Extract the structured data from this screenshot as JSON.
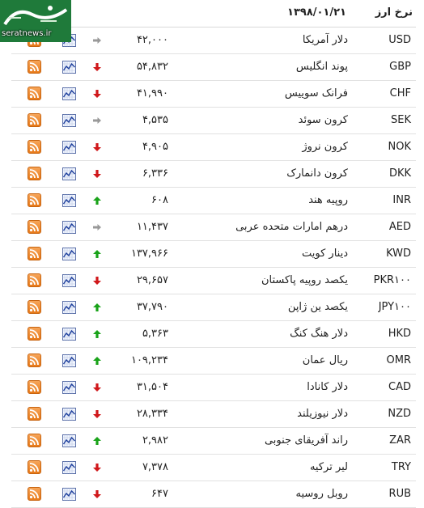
{
  "header": {
    "title": "نرخ ارز",
    "date": "۱۳۹۸/۰۱/۲۱",
    "logo_text": "seratnews.ir"
  },
  "colors": {
    "up": "#1aa31a",
    "down": "#d0181b",
    "flat": "#999999",
    "rss": "#ee8a2a"
  },
  "rows": [
    {
      "code": "USD",
      "name": "دلار آمریکا",
      "price": "۴۲,۰۰۰",
      "trend": "flat"
    },
    {
      "code": "GBP",
      "name": "پوند انگلیس",
      "price": "۵۴,۸۳۲",
      "trend": "down"
    },
    {
      "code": "CHF",
      "name": "فرانک سوییس",
      "price": "۴۱,۹۹۰",
      "trend": "down"
    },
    {
      "code": "SEK",
      "name": "کرون سوئد",
      "price": "۴,۵۳۵",
      "trend": "flat"
    },
    {
      "code": "NOK",
      "name": "کرون نروژ",
      "price": "۴,۹۰۵",
      "trend": "down"
    },
    {
      "code": "DKK",
      "name": "کرون دانمارک",
      "price": "۶,۳۳۶",
      "trend": "down"
    },
    {
      "code": "INR",
      "name": "روپیه هند",
      "price": "۶۰۸",
      "trend": "up"
    },
    {
      "code": "AED",
      "name": "درهم امارات متحده عربی",
      "price": "۱۱,۴۳۷",
      "trend": "flat"
    },
    {
      "code": "KWD",
      "name": "دینار کویت",
      "price": "۱۳۷,۹۶۶",
      "trend": "up"
    },
    {
      "code": "PKR۱۰۰",
      "name": "یکصد روپیه پاکستان",
      "price": "۲۹,۶۵۷",
      "trend": "down"
    },
    {
      "code": "JPY۱۰۰",
      "name": "یکصد ین ژاپن",
      "price": "۳۷,۷۹۰",
      "trend": "up"
    },
    {
      "code": "HKD",
      "name": "دلار هنگ کنگ",
      "price": "۵,۳۶۳",
      "trend": "up"
    },
    {
      "code": "OMR",
      "name": "ریال عمان",
      "price": "۱۰۹,۲۳۴",
      "trend": "up"
    },
    {
      "code": "CAD",
      "name": "دلار کانادا",
      "price": "۳۱,۵۰۴",
      "trend": "down"
    },
    {
      "code": "NZD",
      "name": "دلار نیوزیلند",
      "price": "۲۸,۳۳۴",
      "trend": "down"
    },
    {
      "code": "ZAR",
      "name": "راند آفریقای جنوبی",
      "price": "۲,۹۸۲",
      "trend": "up"
    },
    {
      "code": "TRY",
      "name": "لیر ترکیه",
      "price": "۷,۳۷۸",
      "trend": "down"
    },
    {
      "code": "RUB",
      "name": "روبل روسیه",
      "price": "۶۴۷",
      "trend": "down"
    }
  ]
}
